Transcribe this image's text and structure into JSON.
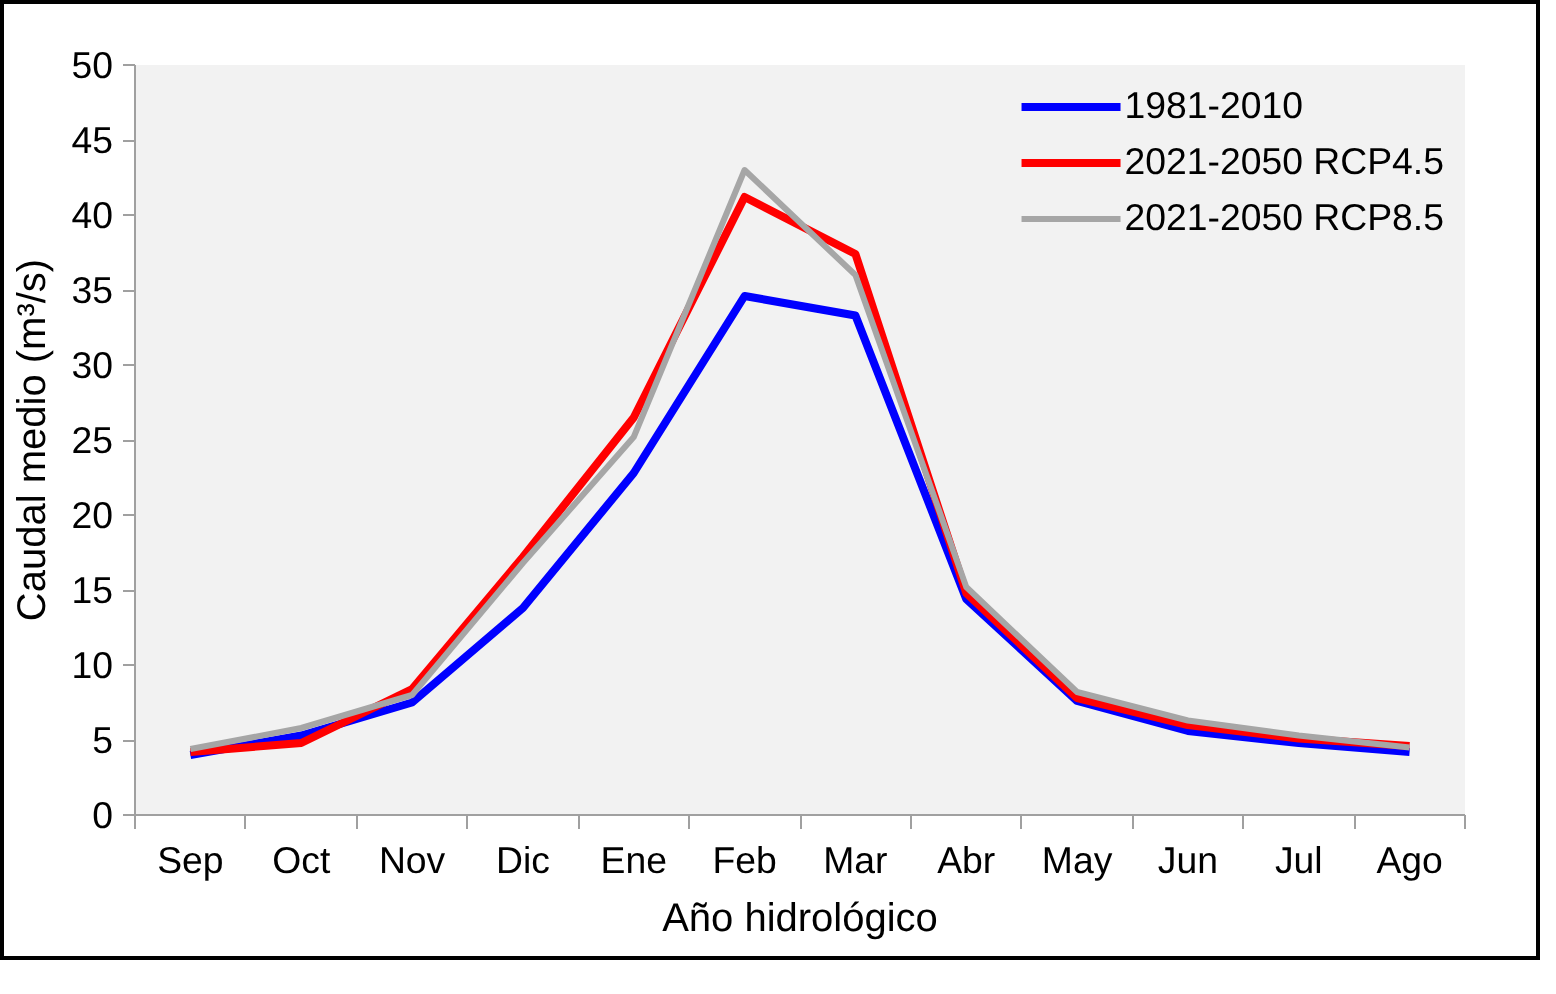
{
  "chart_data": {
    "type": "line",
    "xlabel": "Año hidrológico",
    "ylabel": "Caudal medio (m³/s)",
    "categories": [
      "Sep",
      "Oct",
      "Nov",
      "Dic",
      "Ene",
      "Feb",
      "Mar",
      "Abr",
      "May",
      "Jun",
      "Jul",
      "Ago"
    ],
    "ylim": [
      0,
      50
    ],
    "yticks": [
      0,
      5,
      10,
      15,
      20,
      25,
      30,
      35,
      40,
      45,
      50
    ],
    "grid": false,
    "legend": "top right",
    "line_style": "solid",
    "series": [
      {
        "name": "1981-2010",
        "color": "#0000ff",
        "values": [
          4.0,
          5.3,
          7.5,
          13.8,
          22.8,
          34.6,
          33.3,
          14.4,
          7.6,
          5.6,
          4.8,
          4.2
        ]
      },
      {
        "name": "2021-2050 RCP4.5",
        "color": "#ff0000",
        "values": [
          4.2,
          4.8,
          8.4,
          17.2,
          26.5,
          41.2,
          37.4,
          14.8,
          7.8,
          6.0,
          5.1,
          4.6
        ]
      },
      {
        "name": "2021-2050 RCP8.5",
        "color": "#a6a6a6",
        "values": [
          4.4,
          5.8,
          8.0,
          16.8,
          25.2,
          43.0,
          36.0,
          15.2,
          8.2,
          6.3,
          5.3,
          4.5
        ]
      }
    ]
  }
}
